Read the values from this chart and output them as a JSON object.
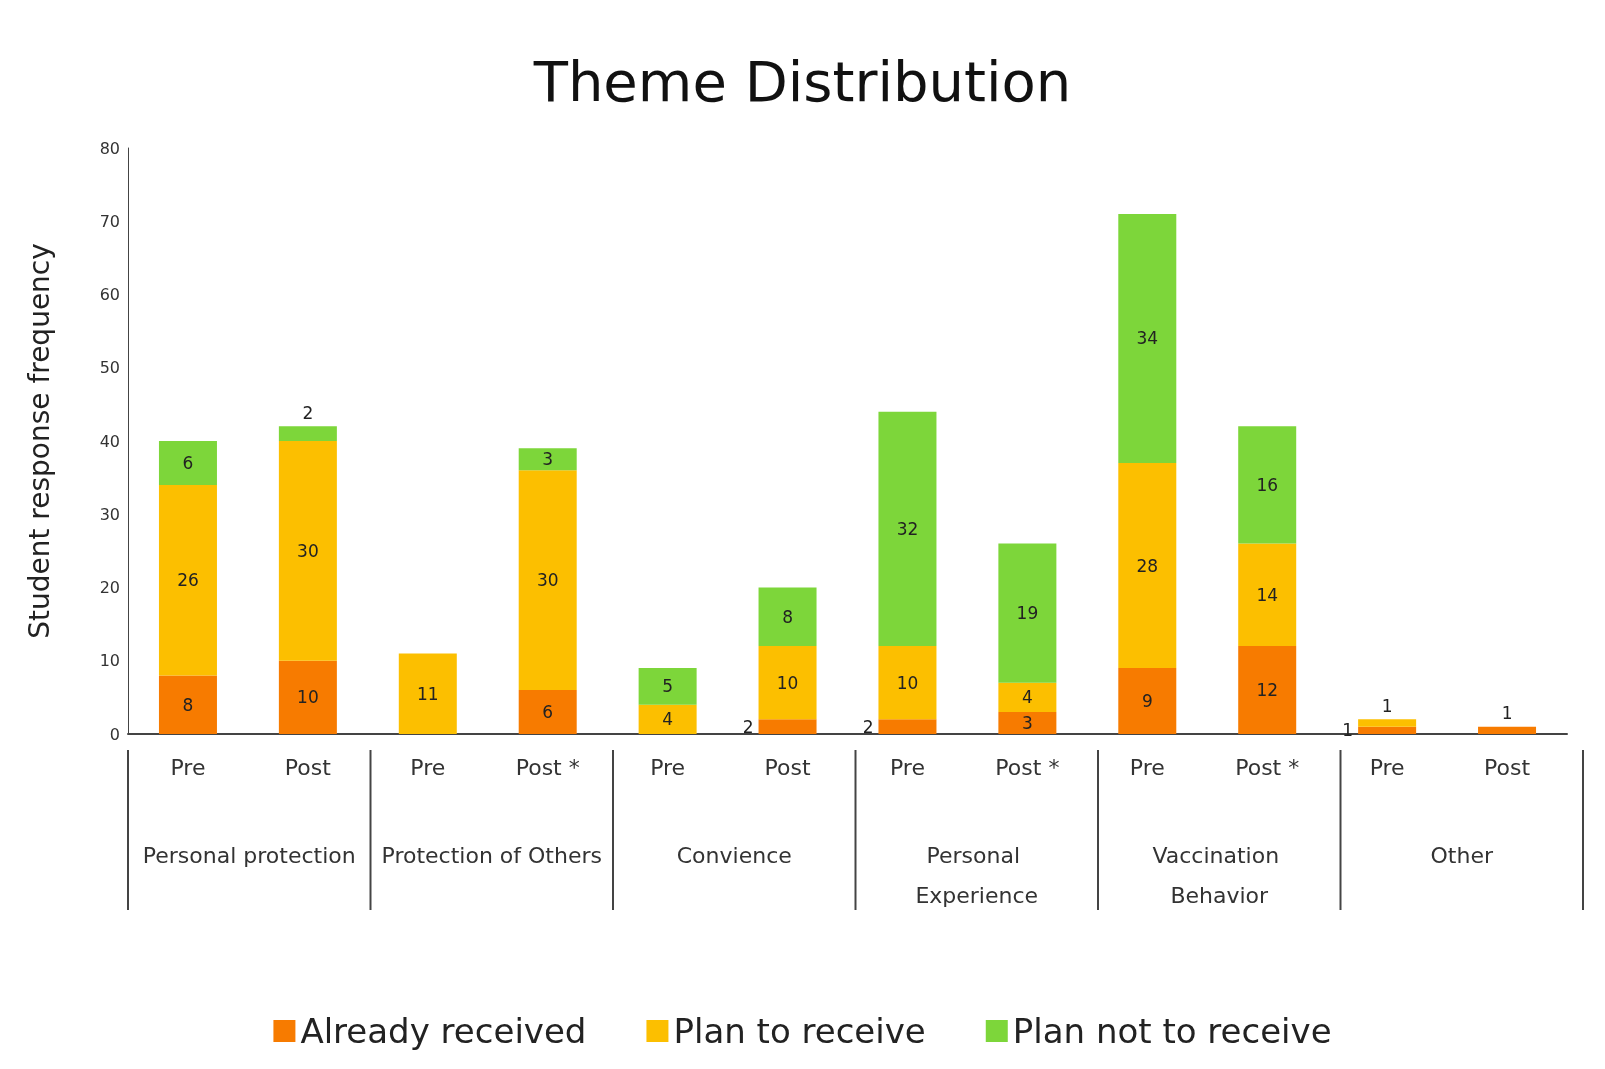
{
  "chart_data": {
    "type": "bar",
    "stacked": true,
    "title": "Theme Distribution",
    "ylabel": "Student response frequency",
    "categories": [
      "Pre",
      "Post",
      "Pre",
      "Post *",
      "Pre",
      "Post",
      "Pre",
      "Post *",
      "Pre",
      "Post *",
      "Pre",
      "Post"
    ],
    "series": [
      {
        "name": "Already received",
        "color": "#f77b00",
        "values": [
          8,
          10,
          0,
          6,
          0,
          2,
          2,
          3,
          9,
          12,
          1,
          1
        ],
        "value_labels": [
          "8",
          "10",
          null,
          "6",
          null,
          "2",
          "2",
          "3",
          "9",
          "12",
          "1",
          "1"
        ]
      },
      {
        "name": "Plan to receive",
        "color": "#fcbf00",
        "values": [
          26,
          30,
          11,
          30,
          4,
          10,
          10,
          4,
          28,
          14,
          1,
          0
        ],
        "value_labels": [
          "26",
          "30",
          "11",
          "30",
          "4",
          "10",
          "10",
          "4",
          "28",
          "14",
          "1",
          null
        ]
      },
      {
        "name": "Plan not to receive",
        "color": "#7dd63a",
        "values": [
          6,
          2,
          0,
          3,
          5,
          8,
          32,
          19,
          34,
          16,
          0,
          0
        ],
        "value_labels": [
          "6",
          "2",
          null,
          "3",
          "5",
          "8",
          "32",
          "19",
          "34",
          "16",
          null,
          null
        ]
      }
    ],
    "annotations": [
      "Personal protection",
      "Protection of Others",
      "Convience",
      "Personal Experience",
      "Vaccination Behavior",
      "Other"
    ],
    "ylim": [
      0,
      80
    ],
    "yticks": [
      0,
      10,
      20,
      30,
      40,
      50,
      60,
      70,
      80
    ],
    "grid": false,
    "legend": "bottom"
  }
}
